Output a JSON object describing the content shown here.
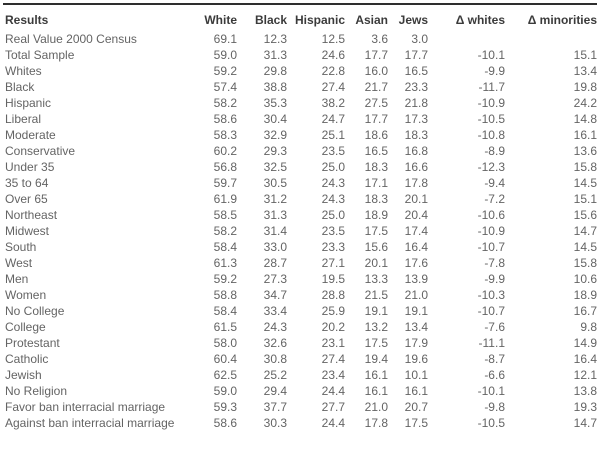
{
  "page": {
    "background": "#ffffff"
  },
  "styles": {
    "top_border_color": "#2e2e2e",
    "header_text_color": "#3b3b3b",
    "body_text_color": "#646464"
  },
  "chart_data": {
    "type": "table",
    "title": "",
    "legend": null,
    "columns": [
      "Results",
      "White",
      "Black",
      "Hispanic",
      "Asian",
      "Jews",
      "Δ whites",
      "Δ minorities"
    ],
    "rows": [
      [
        "Real Value 2000 Census",
        "69.1",
        "12.3",
        "12.5",
        "3.6",
        "3.0",
        "",
        ""
      ],
      [
        "Total Sample",
        "59.0",
        "31.3",
        "24.6",
        "17.7",
        "17.7",
        "-10.1",
        "15.1"
      ],
      [
        "Whites",
        "59.2",
        "29.8",
        "22.8",
        "16.0",
        "16.5",
        "-9.9",
        "13.4"
      ],
      [
        "Black",
        "57.4",
        "38.8",
        "27.4",
        "21.7",
        "23.3",
        "-11.7",
        "19.8"
      ],
      [
        "Hispanic",
        "58.2",
        "35.3",
        "38.2",
        "27.5",
        "21.8",
        "-10.9",
        "24.2"
      ],
      [
        "Liberal",
        "58.6",
        "30.4",
        "24.7",
        "17.7",
        "17.3",
        "-10.5",
        "14.8"
      ],
      [
        "Moderate",
        "58.3",
        "32.9",
        "25.1",
        "18.6",
        "18.3",
        "-10.8",
        "16.1"
      ],
      [
        "Conservative",
        "60.2",
        "29.3",
        "23.5",
        "16.5",
        "16.8",
        "-8.9",
        "13.6"
      ],
      [
        "Under 35",
        "56.8",
        "32.5",
        "25.0",
        "18.3",
        "16.6",
        "-12.3",
        "15.8"
      ],
      [
        "35 to 64",
        "59.7",
        "30.5",
        "24.3",
        "17.1",
        "17.8",
        "-9.4",
        "14.5"
      ],
      [
        "Over 65",
        "61.9",
        "31.2",
        "24.3",
        "18.3",
        "20.1",
        "-7.2",
        "15.1"
      ],
      [
        "Northeast",
        "58.5",
        "31.3",
        "25.0",
        "18.9",
        "20.4",
        "-10.6",
        "15.6"
      ],
      [
        "Midwest",
        "58.2",
        "31.4",
        "23.5",
        "17.5",
        "17.4",
        "-10.9",
        "14.7"
      ],
      [
        "South",
        "58.4",
        "33.0",
        "23.3",
        "15.6",
        "16.4",
        "-10.7",
        "14.5"
      ],
      [
        "West",
        "61.3",
        "28.7",
        "27.1",
        "20.1",
        "17.6",
        "-7.8",
        "15.8"
      ],
      [
        "Men",
        "59.2",
        "27.3",
        "19.5",
        "13.3",
        "13.9",
        "-9.9",
        "10.6"
      ],
      [
        "Women",
        "58.8",
        "34.7",
        "28.8",
        "21.5",
        "21.0",
        "-10.3",
        "18.9"
      ],
      [
        "No College",
        "58.4",
        "33.4",
        "25.9",
        "19.1",
        "19.1",
        "-10.7",
        "16.7"
      ],
      [
        "College",
        "61.5",
        "24.3",
        "20.2",
        "13.2",
        "13.4",
        "-7.6",
        "9.8"
      ],
      [
        "Protestant",
        "58.0",
        "32.6",
        "23.1",
        "17.5",
        "17.9",
        "-11.1",
        "14.9"
      ],
      [
        "Catholic",
        "60.4",
        "30.8",
        "27.4",
        "19.4",
        "19.6",
        "-8.7",
        "16.4"
      ],
      [
        "Jewish",
        "62.5",
        "25.2",
        "23.4",
        "16.1",
        "10.1",
        "-6.6",
        "12.1"
      ],
      [
        "No Religion",
        "59.0",
        "29.4",
        "24.4",
        "16.1",
        "16.1",
        "-10.1",
        "13.8"
      ],
      [
        "Favor ban interracial marriage",
        "59.3",
        "37.7",
        "27.7",
        "21.0",
        "20.7",
        "-9.8",
        "19.3"
      ],
      [
        "Against ban interracial marriage",
        "58.6",
        "30.3",
        "24.4",
        "17.8",
        "17.5",
        "-10.5",
        "14.7"
      ]
    ]
  }
}
